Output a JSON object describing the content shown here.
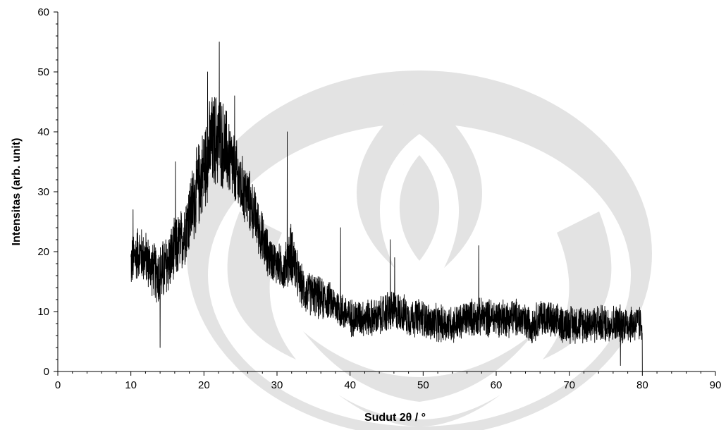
{
  "chart_data": {
    "type": "line",
    "title": "",
    "xlabel": "Sudut 2θ / °",
    "ylabel": "Intensitas (arb. unit)",
    "xlim": [
      0,
      90
    ],
    "ylim": [
      0,
      60
    ],
    "x_ticks": [
      0,
      10,
      20,
      30,
      40,
      50,
      60,
      70,
      80,
      90
    ],
    "y_ticks": [
      0,
      10,
      20,
      30,
      40,
      50,
      60
    ],
    "x_minor_step": 2,
    "y_minor_step": 2,
    "grid": false,
    "legend": "none",
    "series_color": "#000000",
    "series": [
      {
        "x": [
          10,
          11,
          12,
          13,
          14,
          15,
          16,
          17,
          18,
          19,
          20,
          21,
          22,
          23,
          24,
          25,
          26,
          27,
          28,
          29,
          30,
          31,
          32,
          33,
          34,
          35,
          36,
          37,
          38,
          39,
          40,
          41,
          42,
          43,
          44,
          45,
          46,
          47,
          48,
          49,
          50,
          51,
          52,
          53,
          54,
          55,
          56,
          57,
          58,
          59,
          60,
          61,
          62,
          63,
          64,
          65,
          66,
          67,
          68,
          69,
          70,
          71,
          72,
          73,
          74,
          75,
          76,
          77,
          78,
          79,
          80
        ],
        "baseline": [
          18,
          20,
          19,
          17,
          16,
          18,
          20,
          22,
          26,
          30,
          34,
          38,
          39,
          37,
          34,
          31,
          29,
          26,
          22,
          19,
          18,
          17,
          20,
          15,
          13,
          13,
          12,
          12,
          11,
          10,
          9,
          9,
          9,
          9,
          9,
          10,
          10,
          10,
          9,
          9,
          9,
          8,
          8,
          8,
          8,
          8,
          9,
          9,
          9,
          9,
          9,
          9,
          9,
          9,
          8,
          8,
          9,
          9,
          8,
          8,
          8,
          8,
          8,
          8,
          8,
          8,
          8,
          8,
          8,
          8,
          8
        ],
        "noise": [
          5,
          5,
          5,
          5,
          6,
          6,
          6,
          6,
          7,
          8,
          8,
          9,
          9,
          8,
          7,
          6,
          6,
          5,
          5,
          4,
          4,
          4,
          6,
          4,
          4,
          4,
          4,
          3.5,
          3.5,
          3.5,
          3.5,
          3.5,
          3.5,
          3.5,
          3.5,
          4,
          4,
          3.5,
          3.5,
          3.5,
          3.5,
          3.5,
          3.5,
          3.5,
          3.5,
          3.5,
          3.5,
          3.5,
          3.5,
          3.5,
          3.5,
          3.5,
          3.5,
          3.5,
          3.5,
          3.5,
          3.5,
          3.5,
          3.5,
          3.5,
          3.5,
          3.5,
          3.5,
          3.5,
          3.5,
          3.5,
          3.5,
          3.5,
          3.5,
          3.5,
          3.5
        ],
        "step": 0.02,
        "spikes": [
          {
            "x": 10.3,
            "y": 27
          },
          {
            "x": 14.0,
            "y": 4
          },
          {
            "x": 16.1,
            "y": 35
          },
          {
            "x": 20.5,
            "y": 50
          },
          {
            "x": 22.1,
            "y": 55
          },
          {
            "x": 24.2,
            "y": 46
          },
          {
            "x": 31.4,
            "y": 40
          },
          {
            "x": 38.7,
            "y": 24
          },
          {
            "x": 45.5,
            "y": 22
          },
          {
            "x": 46.1,
            "y": 19
          },
          {
            "x": 57.6,
            "y": 21
          },
          {
            "x": 77.0,
            "y": 1
          },
          {
            "x": 80.0,
            "y": 0
          }
        ]
      }
    ]
  }
}
